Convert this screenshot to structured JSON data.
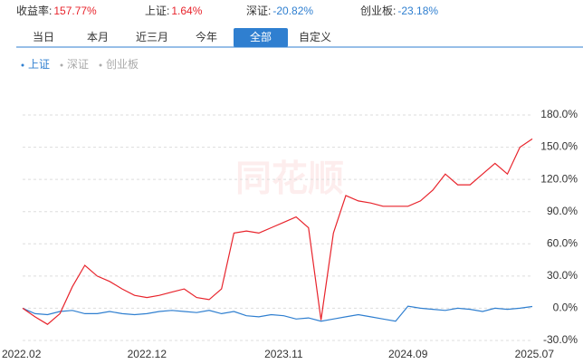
{
  "summary": [
    {
      "label": "收益率:",
      "value": "157.77%"
    },
    {
      "label": "上证:",
      "value": "1.64%"
    },
    {
      "label": "深证:",
      "value": "-20.82%"
    },
    {
      "label": "创业板:",
      "value": "-23.18%"
    }
  ],
  "tabs": [
    "当日",
    "本月",
    "近三月",
    "今年",
    "全部",
    "自定义"
  ],
  "active_tab": 4,
  "legend": [
    {
      "name": "上证",
      "active": true
    },
    {
      "name": "深证",
      "active": false
    },
    {
      "name": "创业板",
      "active": false
    }
  ],
  "watermark": "同花顺",
  "chart_data": {
    "type": "line",
    "x": [
      "2022.02",
      "2022.03",
      "2022.04",
      "2022.05",
      "2022.06",
      "2022.07",
      "2022.08",
      "2022.09",
      "2022.10",
      "2022.11",
      "2022.12",
      "2023.01",
      "2023.02",
      "2023.03",
      "2023.04",
      "2023.05",
      "2023.06",
      "2023.07",
      "2023.08",
      "2023.09",
      "2023.10",
      "2023.11",
      "2023.12",
      "2024.01",
      "2024.02",
      "2024.03",
      "2024.04",
      "2024.05",
      "2024.06",
      "2024.07",
      "2024.08",
      "2024.09",
      "2024.10",
      "2024.11",
      "2024.12",
      "2025.01",
      "2025.02",
      "2025.03",
      "2025.04",
      "2025.05",
      "2025.06",
      "2025.07"
    ],
    "xticks": [
      "2022.02",
      "2022.12",
      "2023.11",
      "2024.09",
      "2025.07"
    ],
    "series": [
      {
        "color": "#e8242c",
        "values": [
          0,
          -8,
          -15,
          -5,
          20,
          40,
          30,
          25,
          18,
          12,
          10,
          12,
          15,
          18,
          10,
          8,
          18,
          70,
          72,
          70,
          75,
          80,
          85,
          75,
          -11,
          70,
          105,
          100,
          98,
          95,
          95,
          95,
          100,
          110,
          125,
          115,
          115,
          125,
          135,
          125,
          150,
          157.77
        ]
      },
      {
        "color": "#2f7fd0",
        "values": [
          0,
          -5,
          -6,
          -3,
          -2,
          -5,
          -5,
          -3,
          -5,
          -6,
          -5,
          -3,
          -2,
          -3,
          -4,
          -2,
          -5,
          -3,
          -7,
          -8,
          -6,
          -7,
          -10,
          -9,
          -12,
          -10,
          -8,
          -6,
          -8,
          -10,
          -12,
          2,
          0,
          -1,
          -2,
          0,
          -1,
          -3,
          0,
          -1,
          0,
          1.64
        ]
      }
    ],
    "ylim": [
      -30,
      180
    ],
    "yticks": [
      {
        "value": -30,
        "label": "-30.0%"
      },
      {
        "value": 0,
        "label": "0.0%"
      },
      {
        "value": 30,
        "label": "30.0%"
      },
      {
        "value": 60,
        "label": "60.0%"
      },
      {
        "value": 90,
        "label": "90.0%"
      },
      {
        "value": 120,
        "label": "120.0%"
      },
      {
        "value": 150,
        "label": "150.0%"
      },
      {
        "value": 180,
        "label": "180.0%"
      }
    ],
    "grid": true
  }
}
